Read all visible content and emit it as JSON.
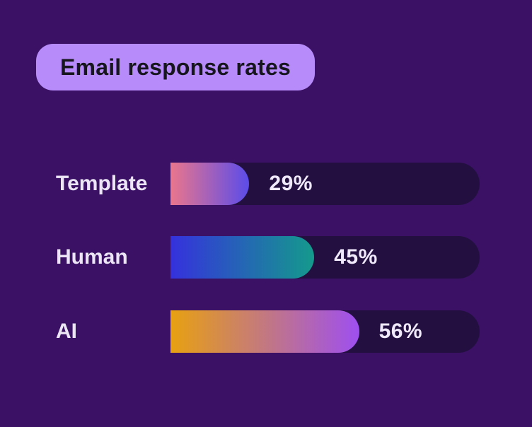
{
  "title": "Email response rates",
  "colors": {
    "background": "#3a1164",
    "track": "#231040",
    "badge_bg": "#b78cfa",
    "badge_text": "#17161e",
    "label_text": "#ebe5f5",
    "value_text": "#f0e9fb"
  },
  "chart_data": {
    "type": "bar",
    "orientation": "horizontal",
    "title": "Email response rates",
    "categories": [
      "Template",
      "Human",
      "AI"
    ],
    "values": [
      29,
      45,
      56
    ],
    "unit": "%",
    "xlim": [
      0,
      100
    ],
    "grid": false,
    "legend": false,
    "bars": [
      {
        "label": "Template",
        "value": 29,
        "value_label": "29%",
        "fill_pct": 25.5,
        "gradient_start": "#ea768c",
        "gradient_end": "#5b4ce9"
      },
      {
        "label": "Human",
        "value": 45,
        "value_label": "45%",
        "fill_pct": 46.5,
        "gradient_start": "#3531dd",
        "gradient_end": "#149a8c"
      },
      {
        "label": "AI",
        "value": 56,
        "value_label": "56%",
        "fill_pct": 61,
        "gradient_start": "#e8a111",
        "gradient_end": "#9e4ff0"
      }
    ]
  }
}
